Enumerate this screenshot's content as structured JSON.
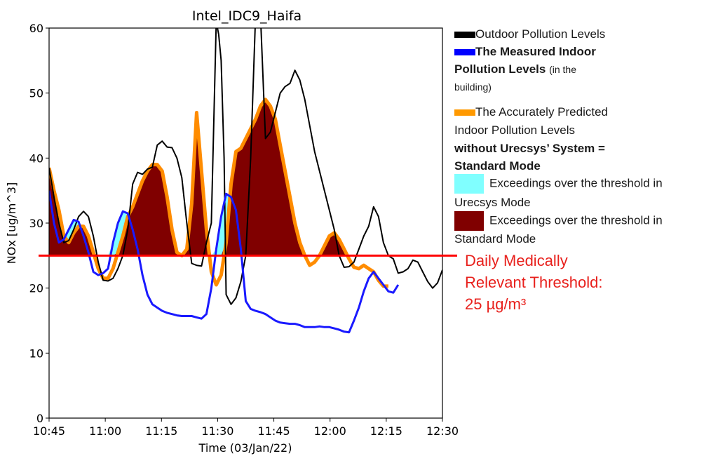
{
  "chart_data": {
    "type": "area",
    "title": "Intel_IDC9_Haifa",
    "xlabel": "Time (03/Jan/22)",
    "ylabel": "NOx [ug/m^3]",
    "ylim": [
      0,
      60
    ],
    "xlim": [
      "10:45",
      "12:30"
    ],
    "x_ticks": [
      "10:45",
      "11:00",
      "11:15",
      "11:30",
      "11:45",
      "12:00",
      "12:15",
      "12:30"
    ],
    "y_ticks": [
      0,
      10,
      20,
      30,
      40,
      50,
      60
    ],
    "grid": false,
    "x_unit": "minutes after 10:45",
    "threshold": 25,
    "series": [
      {
        "name": "Outdoor Pollution Levels",
        "color": "#000000",
        "points": [
          [
            0,
            38.5
          ],
          [
            1,
            34
          ],
          [
            2,
            30
          ],
          [
            3,
            27
          ],
          [
            4,
            27.3
          ],
          [
            5,
            29
          ],
          [
            6,
            31
          ],
          [
            7,
            31.8
          ],
          [
            8,
            31
          ],
          [
            9,
            28
          ],
          [
            10,
            24
          ],
          [
            11,
            21.2
          ],
          [
            12,
            21.1
          ],
          [
            13,
            21.5
          ],
          [
            14,
            23
          ],
          [
            15,
            25
          ],
          [
            16,
            29
          ],
          [
            17,
            36
          ],
          [
            18,
            37.8
          ],
          [
            19,
            37.5
          ],
          [
            20,
            38.3
          ],
          [
            21,
            38.6
          ],
          [
            22,
            42
          ],
          [
            23,
            42.6
          ],
          [
            24,
            41.7
          ],
          [
            25,
            41.6
          ],
          [
            26,
            40
          ],
          [
            27,
            37
          ],
          [
            28,
            30
          ],
          [
            29,
            23.8
          ],
          [
            30,
            23.5
          ],
          [
            31,
            23.4
          ],
          [
            32,
            27
          ],
          [
            33,
            30
          ],
          [
            34,
            61
          ],
          [
            34.5,
            59
          ],
          [
            35,
            55
          ],
          [
            35.6,
            40
          ],
          [
            36,
            19
          ],
          [
            37,
            17.5
          ],
          [
            38,
            18.5
          ],
          [
            39,
            21
          ],
          [
            40,
            25
          ],
          [
            41,
            40
          ],
          [
            42,
            62
          ],
          [
            43,
            62
          ],
          [
            44,
            43
          ],
          [
            45,
            44
          ],
          [
            46,
            47
          ],
          [
            47,
            50
          ],
          [
            48,
            51
          ],
          [
            49,
            51.5
          ],
          [
            50,
            53.5
          ],
          [
            51,
            52
          ],
          [
            52,
            49
          ],
          [
            53,
            45
          ],
          [
            54,
            41
          ],
          [
            55,
            38
          ],
          [
            56,
            35
          ],
          [
            57,
            32
          ],
          [
            58,
            29
          ],
          [
            59,
            25
          ],
          [
            60,
            23.2
          ],
          [
            61,
            23.3
          ],
          [
            62,
            24
          ],
          [
            63,
            26
          ],
          [
            64,
            28
          ],
          [
            65,
            29.5
          ],
          [
            66,
            32.5
          ],
          [
            67,
            31
          ],
          [
            68,
            27
          ],
          [
            69,
            25
          ],
          [
            70,
            24.5
          ],
          [
            71,
            22.3
          ],
          [
            72,
            22.5
          ],
          [
            73,
            23
          ],
          [
            74,
            24.3
          ],
          [
            75,
            24
          ],
          [
            76,
            22.5
          ],
          [
            77,
            21
          ],
          [
            78,
            20
          ],
          [
            79,
            20.8
          ],
          [
            80,
            22.8
          ]
        ]
      },
      {
        "name": "The Measured Indoor Pollution Levels",
        "color": "#1a1aff",
        "points": [
          [
            0,
            35
          ],
          [
            1,
            30
          ],
          [
            2,
            27
          ],
          [
            3,
            27.5
          ],
          [
            4,
            29
          ],
          [
            5,
            30.5
          ],
          [
            6,
            30.2
          ],
          [
            7,
            28
          ],
          [
            8,
            25.5
          ],
          [
            9,
            22.5
          ],
          [
            10,
            22
          ],
          [
            11,
            22.3
          ],
          [
            12,
            23
          ],
          [
            13,
            27
          ],
          [
            14,
            30
          ],
          [
            15,
            31.8
          ],
          [
            16,
            31.5
          ],
          [
            17,
            29
          ],
          [
            18,
            26
          ],
          [
            19,
            22
          ],
          [
            20,
            19
          ],
          [
            21,
            17.5
          ],
          [
            22,
            17
          ],
          [
            23,
            16.5
          ],
          [
            24,
            16.2
          ],
          [
            25,
            16
          ],
          [
            26,
            15.8
          ],
          [
            27,
            15.7
          ],
          [
            28,
            15.7
          ],
          [
            29,
            15.7
          ],
          [
            30,
            15.5
          ],
          [
            31,
            15.3
          ],
          [
            32,
            16
          ],
          [
            33,
            20
          ],
          [
            34,
            26
          ],
          [
            35,
            31
          ],
          [
            36,
            34.5
          ],
          [
            37,
            34
          ],
          [
            38,
            32
          ],
          [
            39,
            26
          ],
          [
            40,
            18
          ],
          [
            41,
            16.8
          ],
          [
            42,
            16.5
          ],
          [
            43,
            16.3
          ],
          [
            44,
            16
          ],
          [
            45,
            15.5
          ],
          [
            46,
            15
          ],
          [
            47,
            14.7
          ],
          [
            48,
            14.6
          ],
          [
            49,
            14.5
          ],
          [
            50,
            14.5
          ],
          [
            51,
            14.3
          ],
          [
            52,
            14
          ],
          [
            53,
            14
          ],
          [
            54,
            14
          ],
          [
            55,
            14.1
          ],
          [
            56,
            14
          ],
          [
            57,
            14
          ],
          [
            58,
            13.8
          ],
          [
            59,
            13.6
          ],
          [
            60,
            13.3
          ],
          [
            61,
            13.2
          ],
          [
            62,
            15
          ],
          [
            63,
            17
          ],
          [
            64,
            19.5
          ],
          [
            65,
            21.5
          ],
          [
            66,
            22.5
          ],
          [
            67,
            21.5
          ],
          [
            68,
            20.5
          ],
          [
            69,
            19.5
          ],
          [
            70,
            19.3
          ],
          [
            71,
            20.5
          ]
        ]
      },
      {
        "name": "The Accurately Predicted Indoor Pollution Levels without Urecsys' System = Standard Mode",
        "color": "#ff8c00",
        "points": [
          [
            0,
            38.5
          ],
          [
            1,
            35
          ],
          [
            2,
            32
          ],
          [
            3,
            28
          ],
          [
            4,
            27
          ],
          [
            5,
            28.5
          ],
          [
            6,
            29.5
          ],
          [
            7,
            29.5
          ],
          [
            8,
            28
          ],
          [
            9,
            25.5
          ],
          [
            10,
            23
          ],
          [
            11,
            21.5
          ],
          [
            12,
            21.5
          ],
          [
            13,
            23
          ],
          [
            14,
            25.5
          ],
          [
            15,
            28
          ],
          [
            16,
            31
          ],
          [
            17,
            32.5
          ],
          [
            18,
            34.5
          ],
          [
            19,
            36.5
          ],
          [
            20,
            38
          ],
          [
            21,
            39
          ],
          [
            22,
            39
          ],
          [
            23,
            38
          ],
          [
            24,
            34
          ],
          [
            25,
            29
          ],
          [
            26,
            25.5
          ],
          [
            27,
            25
          ],
          [
            28,
            26
          ],
          [
            29,
            33
          ],
          [
            30,
            47
          ],
          [
            31,
            38
          ],
          [
            32,
            29
          ],
          [
            33,
            22.5
          ],
          [
            34,
            20.5
          ],
          [
            35,
            22
          ],
          [
            36,
            27
          ],
          [
            37,
            36
          ],
          [
            38,
            41
          ],
          [
            39,
            41.5
          ],
          [
            40,
            43
          ],
          [
            41,
            44.5
          ],
          [
            42,
            46
          ],
          [
            43,
            48
          ],
          [
            44,
            49
          ],
          [
            45,
            48
          ],
          [
            46,
            46
          ],
          [
            47,
            42
          ],
          [
            48,
            38
          ],
          [
            49,
            34
          ],
          [
            50,
            30
          ],
          [
            51,
            27
          ],
          [
            52,
            25
          ],
          [
            53,
            23.5
          ],
          [
            54,
            24
          ],
          [
            55,
            25
          ],
          [
            56,
            26.5
          ],
          [
            57,
            28
          ],
          [
            58,
            28.5
          ],
          [
            59,
            27.5
          ],
          [
            60,
            26
          ],
          [
            61,
            24.5
          ],
          [
            62,
            23.2
          ],
          [
            63,
            23
          ],
          [
            64,
            23.5
          ],
          [
            65,
            23
          ],
          [
            66,
            22.5
          ],
          [
            67,
            21.2
          ],
          [
            68,
            20.3
          ],
          [
            69,
            20.3
          ]
        ]
      }
    ],
    "fills": [
      {
        "name": "Exceedings over the threshold in Urecsys Mode",
        "color": "#80ffff",
        "on_series": "The Measured Indoor Pollution Levels"
      },
      {
        "name": "Exceedings over the threshold in Standard Mode",
        "color": "#800000",
        "on_series": "The Accurately Predicted Indoor Pollution Levels without Urecsys' System = Standard Mode"
      }
    ],
    "threshold_line": {
      "value": 25,
      "color": "#ff0000"
    }
  },
  "legend": {
    "outdoor": "Outdoor Pollution Levels",
    "indoor_bold": "The Measured Indoor",
    "indoor_bold2": "Pollution Levels",
    "indoor_small": "(in the",
    "indoor_small2": "building)",
    "pred1": "The Accurately Predicted",
    "pred2": "Indoor Pollution Levels",
    "pred3": "without Urecsys’ System =",
    "pred4": "Standard Mode",
    "cyan1": "Exceedings over the threshold in",
    "cyan2": "Urecsys Mode",
    "red1": "Exceedings over the threshold in",
    "red2": "Standard Mode"
  },
  "threshold_note": {
    "line1": "Daily Medically",
    "line2": "Relevant Threshold:",
    "line3": "25 µg/m³"
  }
}
